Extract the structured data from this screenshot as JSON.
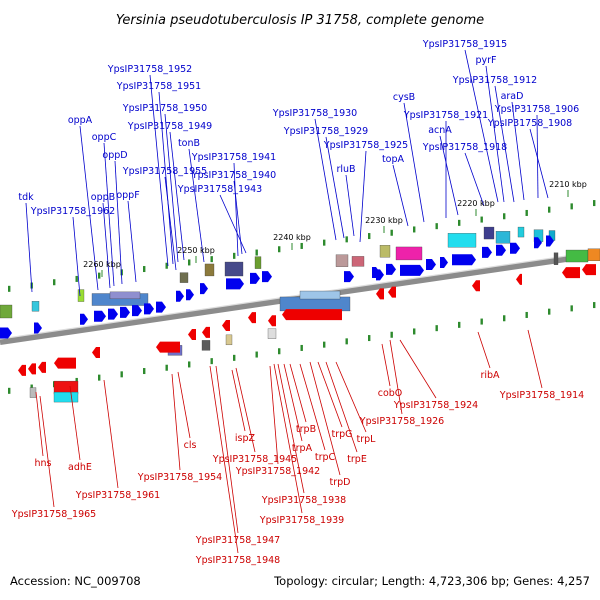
{
  "title": "Yersinia pseudotuberculosis IP 31758, complete genome",
  "accession_text": "Accession: NC_009708",
  "topology_text": "Topology: circular; Length: 4,723,306 bp; Genes: 4,257",
  "colors": {
    "forward_label": "#0000cc",
    "reverse_label": "#cc0000",
    "backbone": "#8c8c8c",
    "forward_arrow": "#0000ee",
    "reverse_arrow": "#ee0000"
  },
  "kbp_labels": [
    "2260 kbp",
    "2250 kbp",
    "2240 kbp",
    "2230 kbp",
    "2220 kbp",
    "2210 kbp"
  ],
  "forward_genes": [
    "tdk",
    "YpsIP31758_1962",
    "oppA",
    "oppB",
    "oppC",
    "oppD",
    "oppF",
    "YpsIP31758_1955",
    "YpsIP31758_1952",
    "YpsIP31758_1951",
    "YpsIP31758_1950",
    "YpsIP31758_1949",
    "tonB",
    "YpsIP31758_1941",
    "YpsIP31758_1940",
    "YpsIP31758_1943",
    "YpsIP31758_1930",
    "YpsIP31758_1929",
    "YpsIP31758_1925",
    "rluB",
    "cysB",
    "YpsIP31758_1921",
    "acnA",
    "topA",
    "YpsIP31758_1918",
    "YpsIP31758_1915",
    "pyrF",
    "YpsIP31758_1912",
    "araD",
    "YpsIP31758_1906",
    "YpsIP31758_1908"
  ],
  "reverse_genes": [
    "hns",
    "adhE",
    "YpsIP31758_1965",
    "YpsIP31758_1961",
    "cls",
    "YpsIP31758_1954",
    "ispZ",
    "YpsIP31758_1945",
    "YpsIP31758_1947",
    "YpsIP31758_1948",
    "trpA",
    "trpB",
    "YpsIP31758_1942",
    "YpsIP31758_1938",
    "YpsIP31758_1939",
    "trpC",
    "trpD",
    "trpG",
    "trpE",
    "trpL",
    "cobO",
    "YpsIP31758_1924",
    "YpsIP31758_1926",
    "ribA",
    "YpsIP31758_1914"
  ]
}
